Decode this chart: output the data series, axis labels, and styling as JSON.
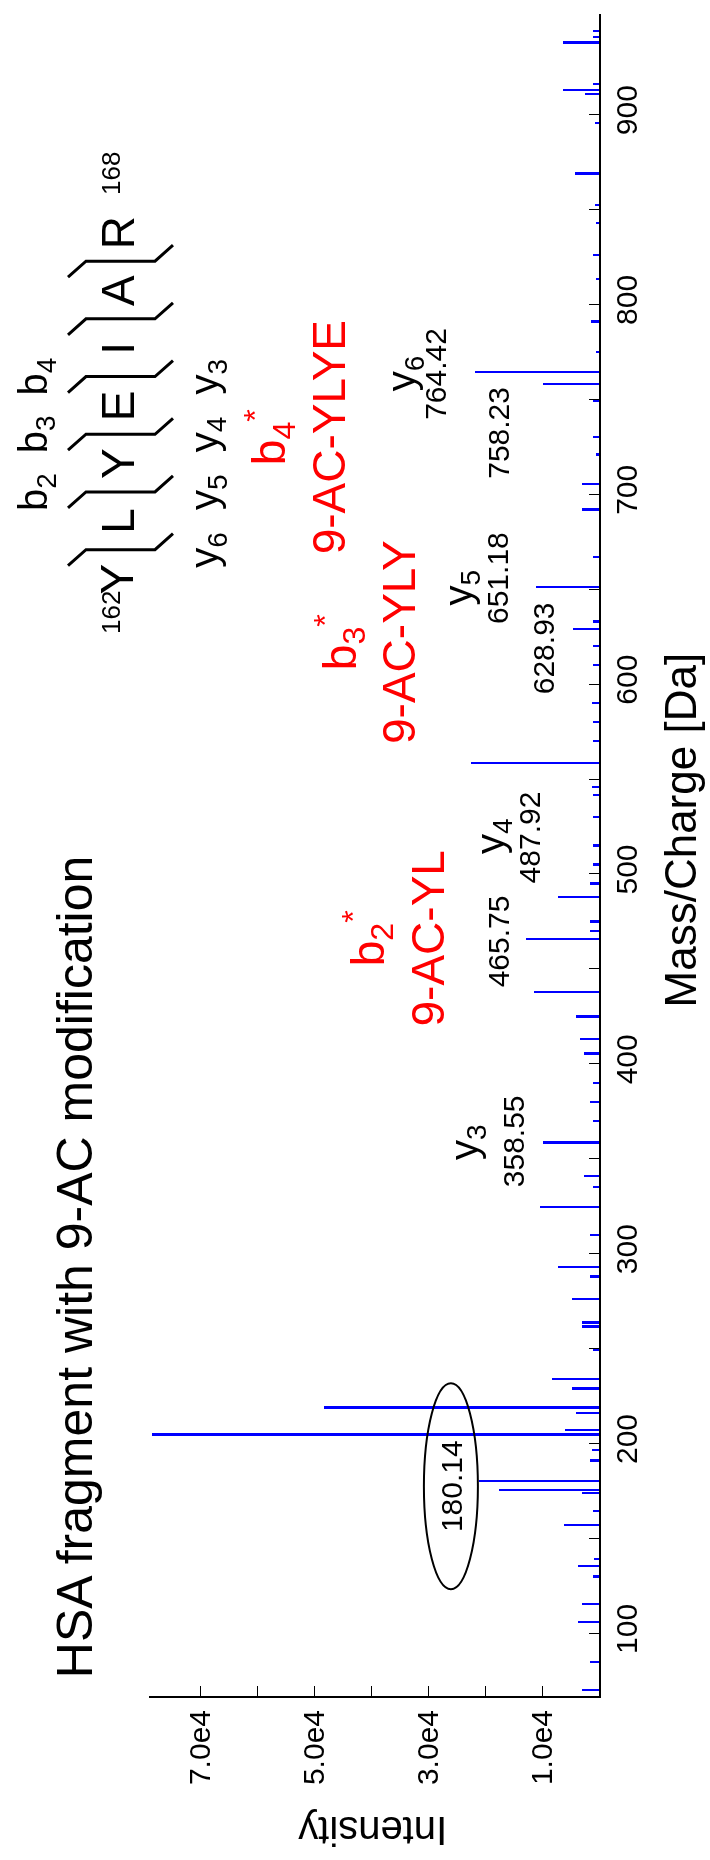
{
  "chart_data": {
    "type": "bar",
    "orientation": "horizontal",
    "title": "HSA fragment with 9-AC modification",
    "xlabel": "Intensity",
    "ylabel": "Mass/Charge [Da]",
    "color": "#0000ff",
    "x": [
      70,
      85,
      106,
      115.3,
      130,
      135.6,
      139,
      157,
      164.6,
      174,
      175.5,
      180.14,
      191,
      196.7,
      204.7,
      207,
      216,
      219,
      229,
      234,
      249.5,
      261.6,
      263.8,
      276,
      288,
      293,
      300,
      310,
      324.4,
      335,
      341,
      350.5,
      358.55,
      370,
      380,
      390,
      405.5,
      413,
      425,
      438,
      450,
      465.75,
      470,
      475,
      487.92,
      495,
      505,
      515,
      530,
      541.5,
      546,
      550.5,
      558.4,
      570,
      580,
      590,
      600,
      610,
      620,
      628.93,
      633,
      651.18,
      667,
      692,
      705.5,
      721,
      730,
      749,
      758.23,
      764.42,
      775,
      791,
      813.5,
      826,
      843,
      852.5,
      869,
      895.5,
      911,
      913,
      916,
      938,
      941,
      944
    ],
    "values": [
      3000,
      1500,
      3600,
      3000,
      1000,
      3700,
      800,
      6200,
      1000,
      3000,
      17500,
      21000,
      1500,
      1200,
      78500,
      6000,
      4000,
      48300,
      4700,
      8200,
      1000,
      3000,
      3000,
      4700,
      1500,
      7200,
      null,
      1500,
      10300,
      1000,
      2700,
      null,
      9800,
      1000,
      1500,
      1000,
      2700,
      3300,
      4000,
      11400,
      null,
      12800,
      1500,
      1500,
      7200,
      1500,
      1000,
      1000,
      1000,
      1000,
      1200,
      null,
      22500,
      1000,
      1000,
      1200,
      null,
      1000,
      1000,
      4600,
      1000,
      11100,
      1000,
      3000,
      3000,
      600,
      1000,
      1000,
      9800,
      21700,
      500,
      1400,
      500,
      1000,
      500,
      700,
      4200,
      700,
      2500,
      6300,
      1000,
      6300,
      1000,
      1000
    ],
    "xlim": [
      79000,
      0
    ],
    "ylim": [
      67,
      953
    ],
    "xticks": [
      {
        "value": 10000,
        "label": "1.0e4"
      },
      {
        "value": 20000,
        "label": null
      },
      {
        "value": 30000,
        "label": "3.0e4"
      },
      {
        "value": 40000,
        "label": null
      },
      {
        "value": 50000,
        "label": "5.0e4"
      },
      {
        "value": 60000,
        "label": null
      },
      {
        "value": 70000,
        "label": "7.0e4"
      }
    ],
    "yticks": [
      100,
      {
        "value": 150,
        "label": null
      },
      200,
      {
        "value": 250,
        "label": null
      },
      300,
      {
        "value": 350,
        "label": null
      },
      400,
      {
        "value": 450,
        "label": null
      },
      500,
      {
        "value": 550,
        "label": null
      },
      600,
      {
        "value": 650,
        "label": null
      },
      700,
      {
        "value": 750,
        "label": null
      },
      800,
      {
        "value": 850,
        "label": null
      },
      900
    ],
    "annotations": [
      "162",
      "Y",
      "L",
      "Y",
      "E",
      "I",
      "A",
      "R",
      "168",
      "b$_{2}$ b$_{3}$ b$_{4}$",
      "y$_{6}$ y$_{5}$ y$_{4}$ y$_{3}$",
      "180.14",
      "358.55",
      "465.75",
      "487.92",
      "628.93",
      "651.18",
      "758.23",
      "764.42",
      "y$_{3}$",
      "y$_{4}$",
      "y$_{5}$",
      "y$_{6}$",
      "b$_{2}$$^{*}$\n9-AC-YL",
      "b$_{3}$$^{*}$\n9-AC-YLY",
      "b$_{4}$$^{*}$\n9-AC-YLYE"
    ]
  }
}
